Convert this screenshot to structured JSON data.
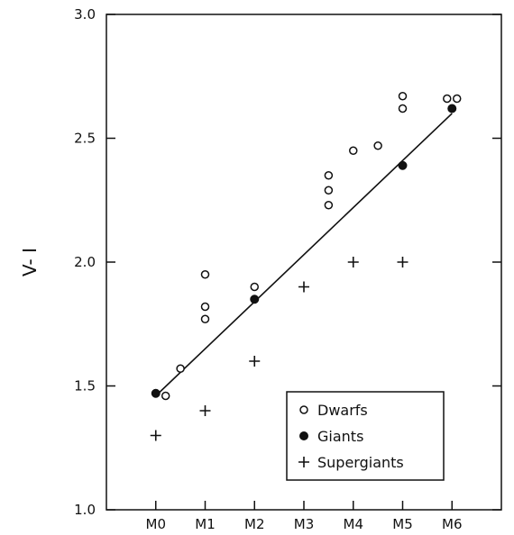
{
  "chart_data": {
    "type": "scatter",
    "ylabel": "V- I",
    "xlabel": "",
    "x_categories": [
      "M0",
      "M1",
      "M2",
      "M3",
      "M4",
      "M5",
      "M6"
    ],
    "xlim": [
      -1,
      7
    ],
    "ylim": [
      1.0,
      3.0
    ],
    "y_ticks": [
      "1.0",
      "1.5",
      "2.0",
      "2.5",
      "3.0"
    ],
    "grid": false,
    "legend_position": "bottom-right",
    "series": [
      {
        "name": "Dwarfs",
        "marker": "open-circle",
        "points": [
          [
            0.2,
            1.46
          ],
          [
            0.5,
            1.57
          ],
          [
            1.0,
            1.77
          ],
          [
            1.0,
            1.82
          ],
          [
            1.0,
            1.95
          ],
          [
            2.0,
            1.9
          ],
          [
            3.5,
            2.23
          ],
          [
            3.5,
            2.29
          ],
          [
            3.5,
            2.35
          ],
          [
            4.0,
            2.45
          ],
          [
            4.5,
            2.47
          ],
          [
            5.0,
            2.62
          ],
          [
            5.0,
            2.67
          ],
          [
            5.9,
            2.66
          ],
          [
            6.1,
            2.66
          ]
        ]
      },
      {
        "name": "Giants",
        "marker": "filled-circle",
        "points": [
          [
            0.0,
            1.47
          ],
          [
            2.0,
            1.85
          ],
          [
            5.0,
            2.39
          ],
          [
            6.0,
            2.62
          ]
        ]
      },
      {
        "name": "Supergiants",
        "marker": "plus",
        "points": [
          [
            0.0,
            1.3
          ],
          [
            1.0,
            1.4
          ],
          [
            2.0,
            1.6
          ],
          [
            3.0,
            1.9
          ],
          [
            4.0,
            2.0
          ],
          [
            5.0,
            2.0
          ]
        ]
      }
    ],
    "fit_line": {
      "from": [
        0.0,
        1.46
      ],
      "to": [
        6.0,
        2.6
      ]
    }
  }
}
